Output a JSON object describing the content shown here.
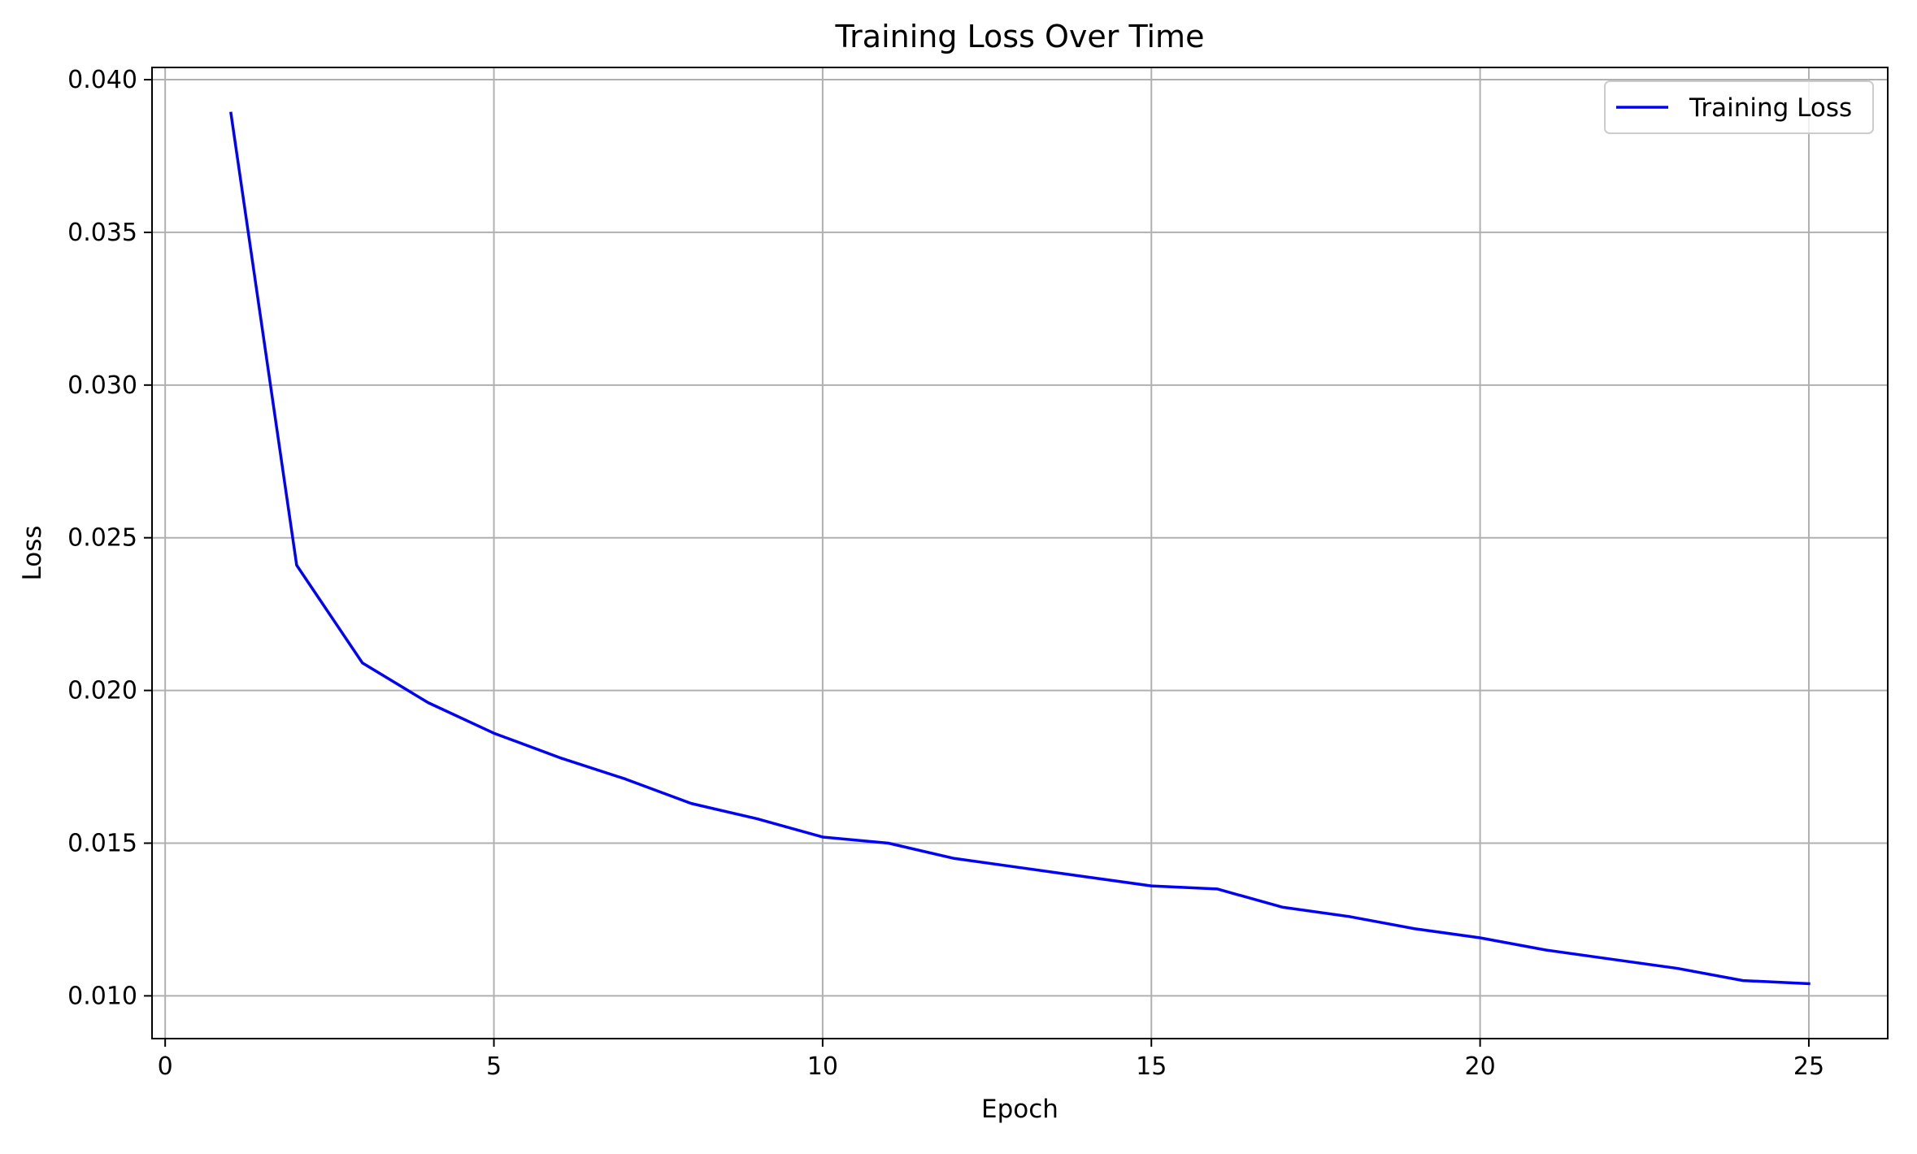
{
  "chart_data": {
    "type": "line",
    "title": "Training Loss Over Time",
    "xlabel": "Epoch",
    "ylabel": "Loss",
    "xlim": [
      -0.2,
      26.2
    ],
    "ylim": [
      0.0086,
      0.0404
    ],
    "xticks": [
      0,
      5,
      10,
      15,
      20,
      25
    ],
    "xtick_labels": [
      "0",
      "5",
      "10",
      "15",
      "20",
      "25"
    ],
    "yticks": [
      0.01,
      0.015,
      0.02,
      0.025,
      0.03,
      0.035,
      0.04
    ],
    "ytick_labels": [
      "0.010",
      "0.015",
      "0.020",
      "0.025",
      "0.030",
      "0.035",
      "0.040"
    ],
    "grid": true,
    "legend_position": "top-right",
    "series": [
      {
        "name": "Training Loss",
        "color": "#0000ff",
        "x": [
          1,
          2,
          3,
          4,
          5,
          6,
          7,
          8,
          9,
          10,
          11,
          12,
          13,
          14,
          15,
          16,
          17,
          18,
          19,
          20,
          21,
          22,
          23,
          24,
          25
        ],
        "y": [
          0.0389,
          0.0241,
          0.0209,
          0.0196,
          0.0186,
          0.0178,
          0.0171,
          0.0163,
          0.0158,
          0.0152,
          0.015,
          0.0145,
          0.0142,
          0.0139,
          0.0136,
          0.0135,
          0.0129,
          0.0126,
          0.0122,
          0.0119,
          0.0115,
          0.0112,
          0.0109,
          0.0105,
          0.0104
        ]
      }
    ]
  },
  "colors": {
    "grid": "#b0b0b0",
    "axes": "#000000",
    "legend_border": "#cccccc"
  }
}
